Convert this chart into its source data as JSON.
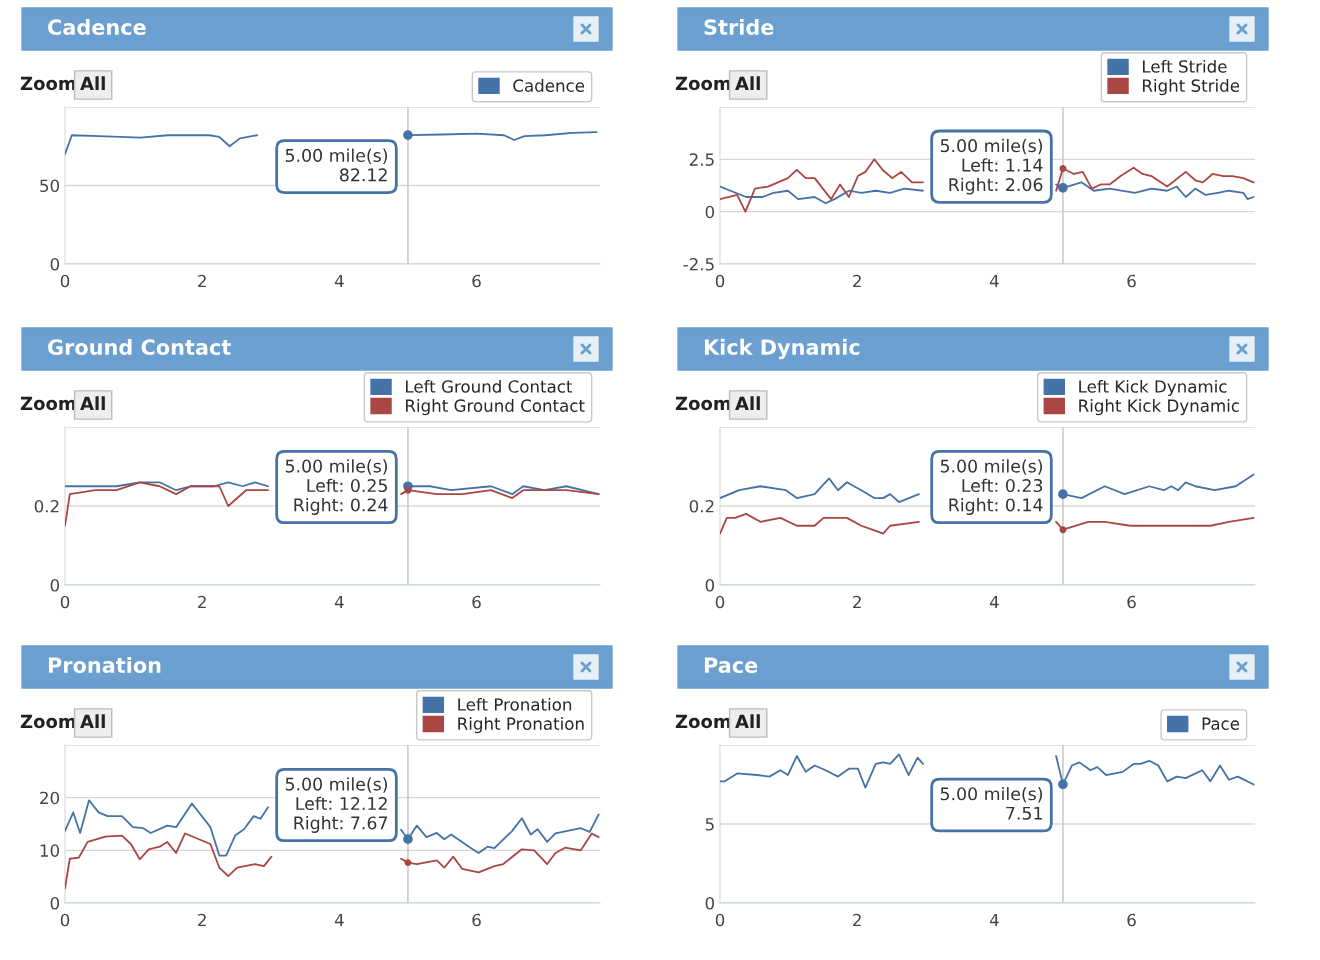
{
  "chart_data": [
    {
      "type": "line",
      "title": "Cadence",
      "xlim": [
        0,
        7.8
      ],
      "xticks": [
        0,
        2,
        4,
        6
      ],
      "ylim": [
        0,
        100
      ],
      "yticks": [
        0,
        50,
        {
          "value": 100,
          "label": null
        }
      ],
      "grid": "y",
      "legend": "top right",
      "series": [
        {
          "name": "Cadence",
          "color": "#4572a7",
          "x": [
            0,
            0.1,
            0.5,
            1.1,
            1.5,
            2.1,
            2.25,
            2.4,
            2.55,
            2.8,
            3.9,
            4.95,
            5,
            5.5,
            6,
            6.4,
            6.55,
            6.7,
            7,
            7.4,
            7.75
          ],
          "values": [
            70,
            82,
            81.5,
            80.5,
            82,
            82,
            81,
            75,
            80,
            82,
            null,
            82,
            82.12,
            82.5,
            83,
            82,
            79,
            81.5,
            82,
            83.5,
            84
          ]
        }
      ],
      "annotations": [
        "Zoom",
        "All",
        "5.00 mile(s)\n82.12"
      ],
      "ref_lines": [
        {
          "axis": "x",
          "value": 5,
          "color": "#c0c0c0"
        }
      ]
    },
    {
      "type": "line",
      "title": "Stride",
      "xlim": [
        0,
        7.8
      ],
      "xticks": [
        0,
        2,
        4,
        6
      ],
      "ylim": [
        -2.5,
        5
      ],
      "yticks": [
        -2.5,
        0,
        2.5,
        {
          "value": 5,
          "label": null
        }
      ],
      "grid": "y",
      "legend": "top right",
      "series": [
        {
          "name": "Left Stride",
          "color": "#4572a7",
          "x": [
            0,
            0.38,
            0.62,
            0.78,
            0.99,
            1.14,
            1.38,
            1.54,
            1.67,
            1.88,
            2.06,
            2.27,
            2.48,
            2.69,
            2.96,
            3.9,
            4.9,
            5,
            5.27,
            5.45,
            5.68,
            6.05,
            6.29,
            6.52,
            6.66,
            6.79,
            6.93,
            7.08,
            7.26,
            7.42,
            7.63,
            7.69,
            7.78
          ],
          "values": [
            1.2,
            0.7,
            0.7,
            0.9,
            1.0,
            0.6,
            0.7,
            0.4,
            0.6,
            1.0,
            0.9,
            1.0,
            0.9,
            1.1,
            1.0,
            null,
            1.3,
            1.14,
            1.4,
            1.0,
            1.1,
            0.9,
            1.1,
            1.0,
            1.2,
            0.7,
            1.1,
            0.8,
            0.9,
            1.0,
            0.9,
            0.6,
            0.7
          ]
        },
        {
          "name": "Right Stride",
          "color": "#aa4643",
          "x": [
            0,
            0.25,
            0.37,
            0.51,
            0.7,
            0.99,
            1.12,
            1.25,
            1.38,
            1.62,
            1.75,
            1.88,
            2.01,
            2.12,
            2.25,
            2.37,
            2.51,
            2.64,
            2.8,
            2.96,
            3.9,
            4.79,
            4.9,
            5,
            5.16,
            5.29,
            5.42,
            5.55,
            5.68,
            5.84,
            6.03,
            6.16,
            6.29,
            6.52,
            6.79,
            6.93,
            7.04,
            7.18,
            7.34,
            7.47,
            7.63,
            7.78
          ],
          "values": [
            0.6,
            0.8,
            0,
            1.1,
            1.2,
            1.6,
            2.0,
            1.6,
            1.6,
            0.6,
            1.3,
            0.7,
            1.7,
            1.9,
            2.5,
            2.0,
            1.6,
            1.9,
            1.4,
            1.4,
            null,
            null,
            1.0,
            2.06,
            1.8,
            1.9,
            1.1,
            1.3,
            1.3,
            1.7,
            2.1,
            1.8,
            1.7,
            1.2,
            1.9,
            1.5,
            1.4,
            1.8,
            1.7,
            1.7,
            1.6,
            1.4
          ]
        }
      ],
      "annotations": [
        "Zoom",
        "All",
        "5.00 mile(s)\nLeft: 1.14\nRight: 2.06"
      ],
      "ref_lines": [
        {
          "axis": "x",
          "value": 5,
          "color": "#c0c0c0"
        }
      ]
    },
    {
      "type": "line",
      "title": "Ground Contact",
      "xlim": [
        0,
        7.8
      ],
      "xticks": [
        0,
        2,
        4,
        6
      ],
      "ylim": [
        0,
        0.4
      ],
      "yticks": [
        0,
        0.2,
        {
          "value": 0.4,
          "label": null
        }
      ],
      "grid": "y",
      "legend": "top right",
      "series": [
        {
          "name": "Left Ground Contact",
          "color": "#4572a7",
          "x": [
            0,
            0.17,
            0.44,
            0.75,
            1.09,
            1.38,
            1.62,
            1.83,
            2.17,
            2.38,
            2.59,
            2.77,
            2.96,
            3.9,
            5,
            5.32,
            5.63,
            6.21,
            6.52,
            6.68,
            6.99,
            7.31,
            7.78
          ],
          "values": [
            0.25,
            0.25,
            0.25,
            0.25,
            0.26,
            0.26,
            0.24,
            0.25,
            0.25,
            0.26,
            0.25,
            0.26,
            0.25,
            null,
            0.25,
            0.25,
            0.24,
            0.25,
            0.23,
            0.25,
            0.24,
            0.25,
            0.23
          ]
        },
        {
          "name": "Right Ground Contact",
          "color": "#aa4643",
          "x": [
            0,
            0.07,
            0.44,
            0.75,
            1.09,
            1.38,
            1.62,
            1.83,
            2.25,
            2.38,
            2.64,
            2.96,
            3.9,
            4.9,
            5,
            5.42,
            5.79,
            6.21,
            6.52,
            6.68,
            7.31,
            7.78
          ],
          "values": [
            0.15,
            0.23,
            0.24,
            0.24,
            0.26,
            0.25,
            0.23,
            0.25,
            0.25,
            0.2,
            0.24,
            0.24,
            null,
            0.23,
            0.24,
            0.23,
            0.23,
            0.24,
            0.22,
            0.24,
            0.24,
            0.23
          ]
        }
      ],
      "annotations": [
        "Zoom",
        "All",
        "5.00 mile(s)\nLeft: 0.25\nRight: 0.24"
      ],
      "ref_lines": [
        {
          "axis": "x",
          "value": 5,
          "color": "#c0c0c0"
        }
      ]
    },
    {
      "type": "line",
      "title": "Kick Dynamic",
      "xlim": [
        0,
        7.8
      ],
      "xticks": [
        0,
        2,
        4,
        6
      ],
      "ylim": [
        0,
        0.4
      ],
      "yticks": [
        0,
        0.2,
        {
          "value": 0.4,
          "label": null
        }
      ],
      "grid": "y",
      "legend": "top right",
      "series": [
        {
          "name": "Left Kick Dynamic",
          "color": "#4572a7",
          "x": [
            0,
            0.28,
            0.59,
            0.96,
            1.12,
            1.38,
            1.59,
            1.72,
            1.85,
            2.06,
            2.25,
            2.38,
            2.48,
            2.61,
            2.9,
            3.9,
            4.79,
            5,
            5.27,
            5.61,
            5.9,
            6.26,
            6.47,
            6.58,
            6.68,
            6.79,
            6.93,
            7.21,
            7.52,
            7.78
          ],
          "values": [
            0.22,
            0.24,
            0.25,
            0.24,
            0.22,
            0.23,
            0.27,
            0.24,
            0.26,
            0.24,
            0.22,
            0.22,
            0.23,
            0.21,
            0.23,
            null,
            null,
            0.23,
            0.22,
            0.25,
            0.23,
            0.25,
            0.24,
            0.25,
            0.24,
            0.26,
            0.25,
            0.24,
            0.25,
            0.28
          ]
        },
        {
          "name": "Right Kick Dynamic",
          "color": "#aa4643",
          "x": [
            0,
            0.1,
            0.22,
            0.38,
            0.59,
            0.88,
            1.12,
            1.38,
            1.51,
            1.67,
            1.85,
            2.06,
            2.22,
            2.38,
            2.48,
            2.9,
            3.9,
            4.79,
            4.9,
            5,
            5.37,
            5.61,
            5.98,
            6.68,
            7.15,
            7.42,
            7.78
          ],
          "values": [
            0.13,
            0.17,
            0.17,
            0.18,
            0.16,
            0.17,
            0.15,
            0.15,
            0.17,
            0.17,
            0.17,
            0.15,
            0.14,
            0.13,
            0.15,
            0.16,
            null,
            null,
            0.16,
            0.14,
            0.16,
            0.16,
            0.15,
            0.15,
            0.15,
            0.16,
            0.17
          ]
        }
      ],
      "annotations": [
        "Zoom",
        "All",
        "5.00 mile(s)\nLeft: 0.23\nRight: 0.14"
      ],
      "ref_lines": [
        {
          "axis": "x",
          "value": 5,
          "color": "#c0c0c0"
        }
      ]
    },
    {
      "type": "line",
      "title": "Pronation",
      "xlim": [
        0,
        7.8
      ],
      "xticks": [
        0,
        2,
        4,
        6
      ],
      "ylim": [
        0,
        30
      ],
      "yticks": [
        0,
        10,
        20,
        {
          "value": 30,
          "label": null
        }
      ],
      "grid": "y",
      "legend": "top right",
      "series": [
        {
          "name": "Left Pronation",
          "color": "#4572a7",
          "x": [
            0,
            0.12,
            0.22,
            0.35,
            0.49,
            0.62,
            0.83,
            0.99,
            1.14,
            1.25,
            1.49,
            1.62,
            1.85,
            2.12,
            2.25,
            2.35,
            2.48,
            2.61,
            2.75,
            2.85,
            2.96,
            3.9,
            4.79,
            4.9,
            5,
            5.13,
            5.27,
            5.42,
            5.53,
            5.63,
            5.9,
            6.03,
            6.16,
            6.26,
            6.52,
            6.66,
            6.79,
            6.89,
            7.03,
            7.15,
            7.52,
            7.65,
            7.78
          ],
          "values": [
            13.7,
            17.2,
            13.3,
            19.5,
            17.2,
            16.5,
            16.5,
            14.4,
            14.2,
            13.3,
            14.7,
            14.4,
            18.9,
            14.4,
            9.0,
            9.0,
            12.8,
            14.0,
            16.5,
            16.0,
            18.2,
            null,
            null,
            13.9,
            12.12,
            14.7,
            12.5,
            13.3,
            12.1,
            13.0,
            10.6,
            9.5,
            10.7,
            10.4,
            13.7,
            16.1,
            13.0,
            14.0,
            11.6,
            13.2,
            14.2,
            13.5,
            16.8
          ]
        },
        {
          "name": "Right Pronation",
          "color": "#aa4643",
          "x": [
            0,
            0.07,
            0.2,
            0.33,
            0.59,
            0.83,
            0.96,
            1.09,
            1.22,
            1.38,
            1.49,
            1.62,
            1.75,
            2.12,
            2.25,
            2.38,
            2.51,
            2.77,
            2.9,
            3.01,
            3.9,
            4.9,
            5,
            5.13,
            5.42,
            5.53,
            5.66,
            5.79,
            6.03,
            6.26,
            6.39,
            6.66,
            6.84,
            7.03,
            7.15,
            7.29,
            7.52,
            7.68,
            7.78
          ],
          "values": [
            2.8,
            8.4,
            8.6,
            11.6,
            12.6,
            12.8,
            11.2,
            8.3,
            10.2,
            10.7,
            11.6,
            9.5,
            13.2,
            11.2,
            6.7,
            5.1,
            6.7,
            7.4,
            7.0,
            8.8,
            null,
            8.4,
            7.67,
            7.4,
            8.1,
            6.7,
            8.8,
            6.5,
            5.8,
            7.0,
            7.4,
            10.2,
            10.0,
            7.4,
            9.5,
            10.5,
            10.0,
            13.2,
            12.5
          ]
        }
      ],
      "annotations": [
        "Zoom",
        "All",
        "5.00 mile(s)\nLeft: 12.12\nRight: 7.67"
      ],
      "ref_lines": [
        {
          "axis": "x",
          "value": 5,
          "color": "#c0c0c0"
        }
      ]
    },
    {
      "type": "line",
      "title": "Pace",
      "xlim": [
        0,
        7.8
      ],
      "xticks": [
        0,
        2,
        4,
        6
      ],
      "ylim": [
        0,
        10
      ],
      "yticks": [
        0,
        5,
        {
          "value": 10,
          "label": null
        }
      ],
      "grid": "y",
      "legend": "top right",
      "series": [
        {
          "name": "Pace",
          "color": "#4572a7",
          "x": [
            0,
            0.07,
            0.25,
            0.54,
            0.72,
            0.88,
            0.99,
            1.12,
            1.25,
            1.38,
            1.54,
            1.72,
            1.88,
            2.01,
            2.12,
            2.27,
            2.38,
            2.48,
            2.61,
            2.75,
            2.88,
            2.96,
            3.9,
            4.79,
            4.9,
            5,
            5.13,
            5.24,
            5.4,
            5.5,
            5.63,
            5.87,
            6.03,
            6.13,
            6.26,
            6.39,
            6.52,
            6.66,
            6.79,
            7.03,
            7.15,
            7.29,
            7.42,
            7.55,
            7.78
          ],
          "values": [
            7.7,
            7.7,
            8.2,
            8.1,
            8.0,
            8.4,
            8.1,
            9.3,
            8.3,
            8.7,
            8.4,
            8.0,
            8.5,
            8.5,
            7.3,
            8.8,
            8.9,
            8.8,
            9.4,
            8.1,
            9.2,
            8.8,
            null,
            null,
            9.3,
            7.51,
            8.7,
            8.9,
            8.4,
            8.6,
            8.1,
            8.3,
            8.8,
            8.8,
            9.0,
            8.7,
            7.7,
            8.0,
            7.9,
            8.4,
            7.7,
            8.7,
            7.8,
            8.0,
            7.5
          ]
        }
      ],
      "annotations": [
        "Zoom",
        "All",
        "5.00 mile(s)\n7.51"
      ],
      "ref_lines": [
        {
          "axis": "x",
          "value": 5,
          "color": "#c0c0c0"
        }
      ]
    }
  ]
}
